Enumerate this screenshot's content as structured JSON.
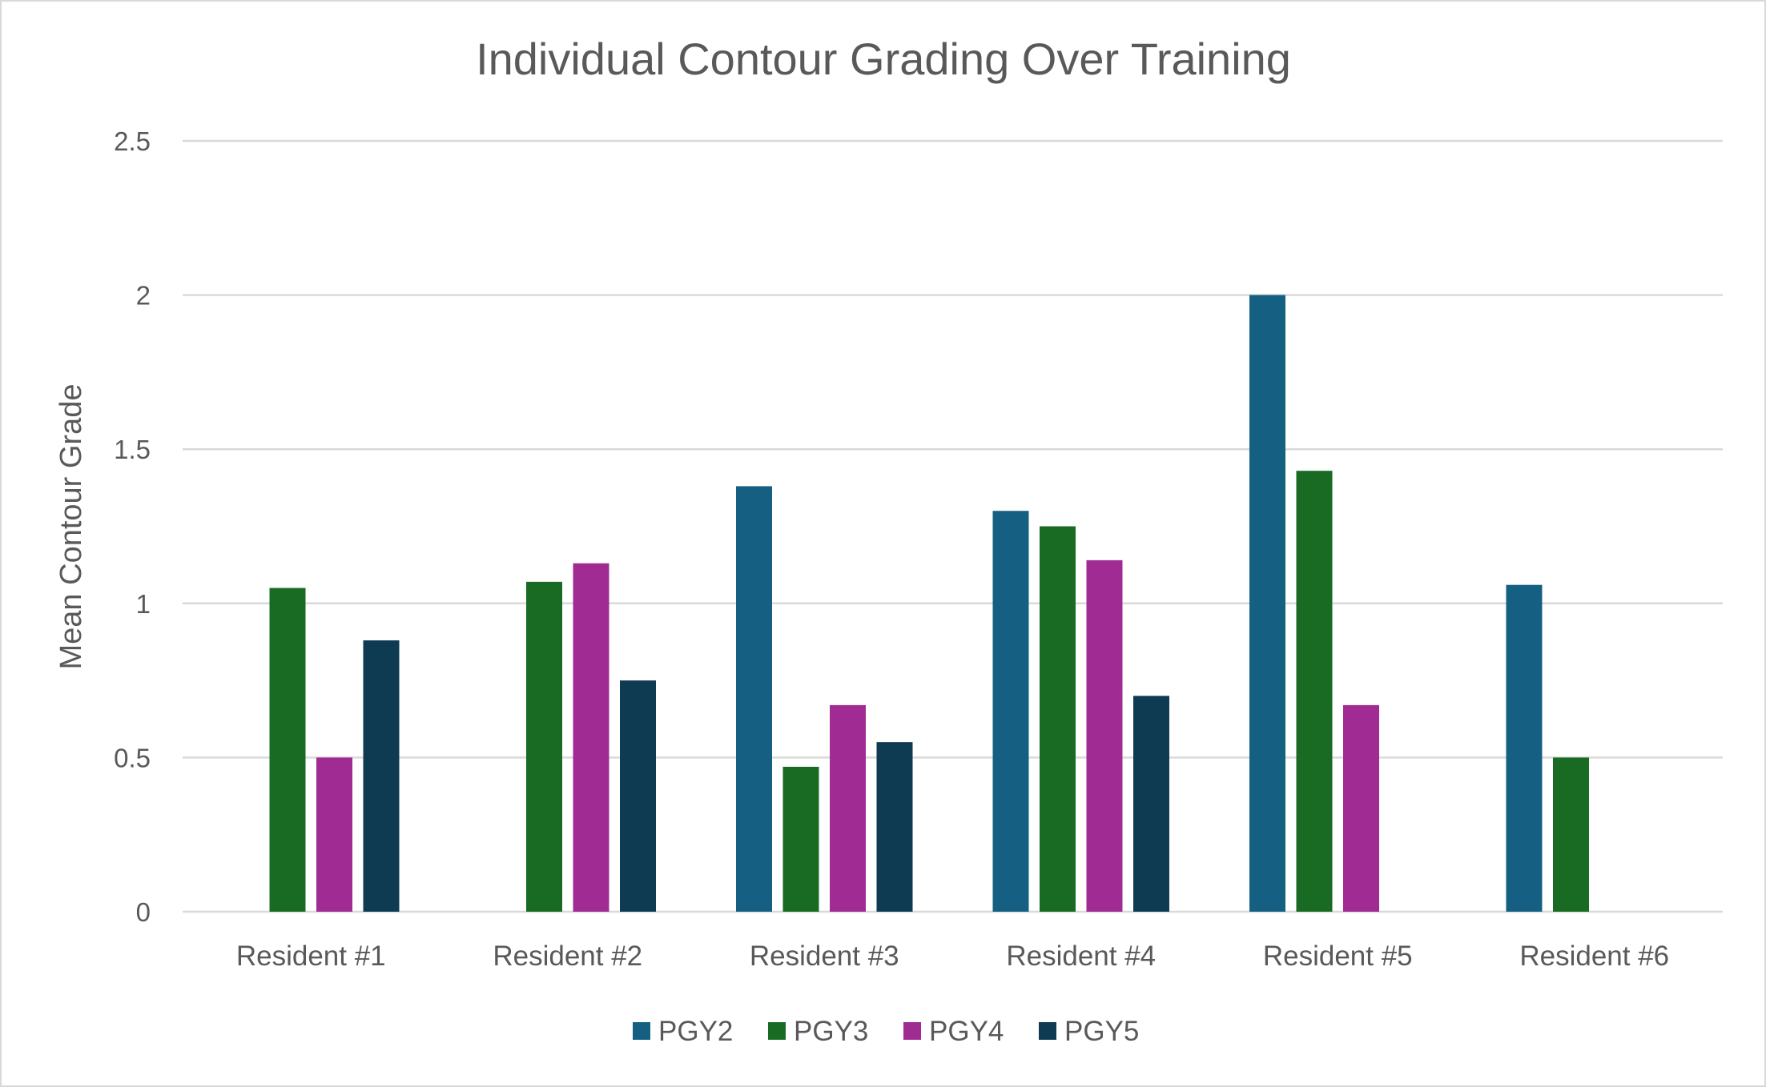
{
  "chart_data": {
    "type": "bar",
    "title": "Individual Contour Grading Over Training",
    "xlabel": "",
    "ylabel": "Mean Contour Grade",
    "ylim": [
      0,
      2.5
    ],
    "yticks": [
      0,
      0.5,
      1,
      1.5,
      2,
      2.5
    ],
    "ytick_labels": [
      "0",
      "0.5",
      "1",
      "1.5",
      "2",
      "2.5"
    ],
    "grid": true,
    "legend_position": "bottom",
    "categories": [
      "Resident  #1",
      "Resident  #2",
      "Resident  #3",
      "Resident  #4",
      "Resident  #5",
      "Resident  #6"
    ],
    "series": [
      {
        "name": "PGY2",
        "color": "#156082",
        "values": [
          null,
          null,
          1.38,
          1.3,
          2.0,
          1.06
        ]
      },
      {
        "name": "PGY3",
        "color": "#196B24",
        "values": [
          1.05,
          1.07,
          0.47,
          1.25,
          1.43,
          0.5
        ]
      },
      {
        "name": "PGY4",
        "color": "#A02B93",
        "values": [
          0.5,
          1.13,
          0.67,
          1.14,
          0.67,
          null
        ]
      },
      {
        "name": "PGY5",
        "color": "#0E3A52",
        "values": [
          0.88,
          0.75,
          0.55,
          0.7,
          null,
          null
        ]
      }
    ]
  }
}
